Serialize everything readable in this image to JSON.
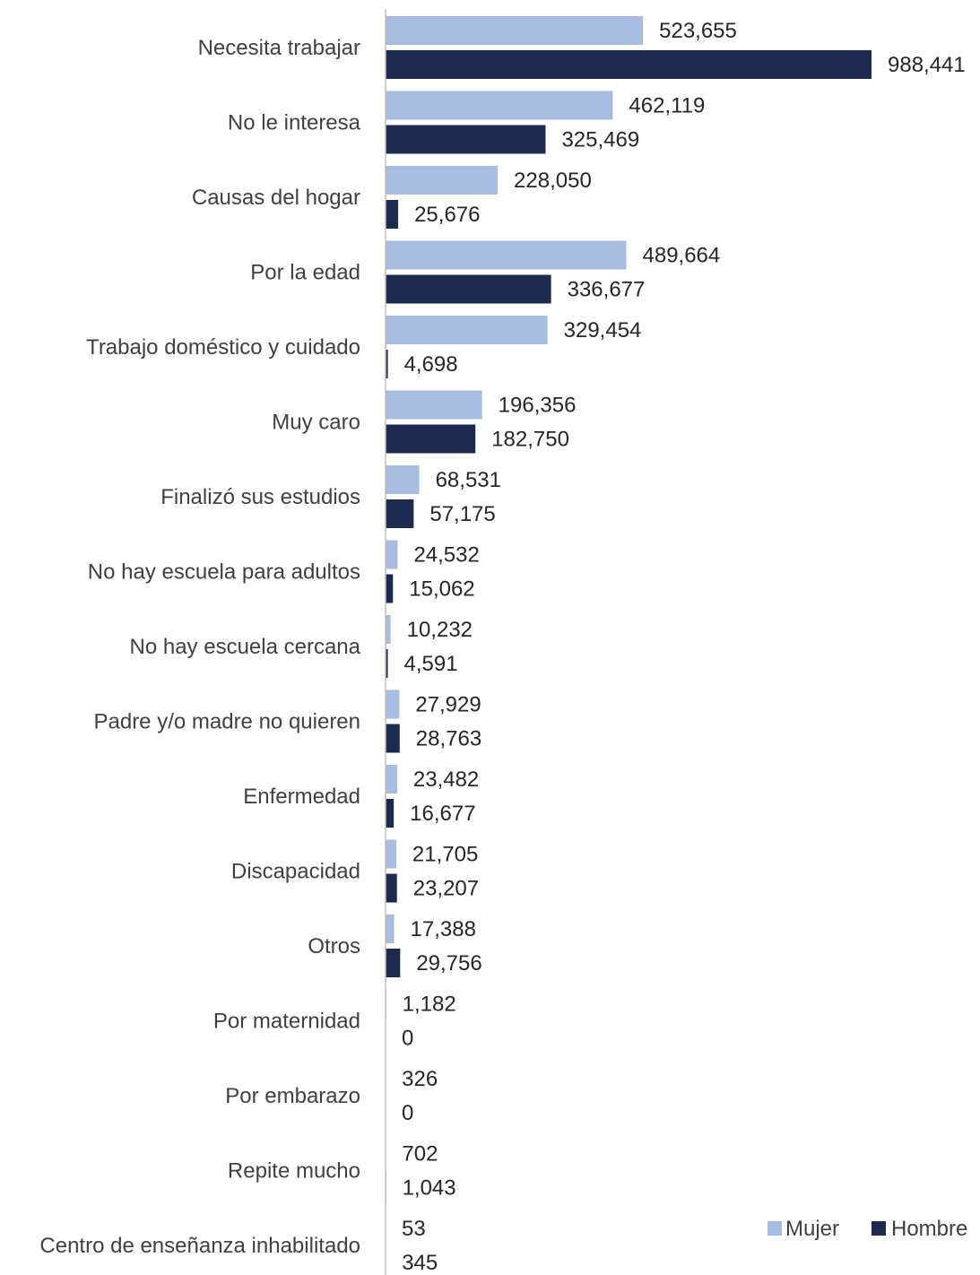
{
  "chart_data": {
    "type": "bar",
    "orientation": "horizontal",
    "categories": [
      "Necesita trabajar",
      "No le interesa",
      "Causas del hogar",
      "Por la edad",
      "Trabajo doméstico y cuidado",
      "Muy caro",
      "Finalizó sus estudios",
      "No hay escuela para adultos",
      "No hay escuela cercana",
      "Padre y/o madre no quieren",
      "Enfermedad",
      "Discapacidad",
      "Otros",
      "Por maternidad",
      "Por embarazo",
      "Repite mucho",
      "Centro de enseñanza inhabilitado"
    ],
    "series": [
      {
        "name": "Mujer",
        "color": "#a6bde0",
        "values": [
          523655,
          462119,
          228050,
          489664,
          329454,
          196356,
          68531,
          24532,
          10232,
          27929,
          23482,
          21705,
          17388,
          1182,
          326,
          702,
          53
        ],
        "labels": [
          "523,655",
          "462,119",
          "228,050",
          "489,664",
          "329,454",
          "196,356",
          "68,531",
          "24,532",
          "10,232",
          "27,929",
          "23,482",
          "21,705",
          "17,388",
          "1,182",
          "326",
          "702",
          "53"
        ]
      },
      {
        "name": "Hombre",
        "color": "#1b2a4e",
        "values": [
          988441,
          325469,
          25676,
          336677,
          4698,
          182750,
          57175,
          15062,
          4591,
          28763,
          16677,
          23207,
          29756,
          0,
          0,
          1043,
          345
        ],
        "labels": [
          "988,441",
          "325,469",
          "25,676",
          "336,677",
          "4,698",
          "182,750",
          "57,175",
          "15,062",
          "4,591",
          "28,763",
          "16,677",
          "23,207",
          "29,756",
          "0",
          "0",
          "1,043",
          "345"
        ]
      }
    ],
    "title": "",
    "xlabel": "",
    "ylabel": "",
    "xlim": [
      0,
      988441
    ],
    "grid": false,
    "legend": "bottom-right",
    "axis_color": "#bfbfbf"
  }
}
